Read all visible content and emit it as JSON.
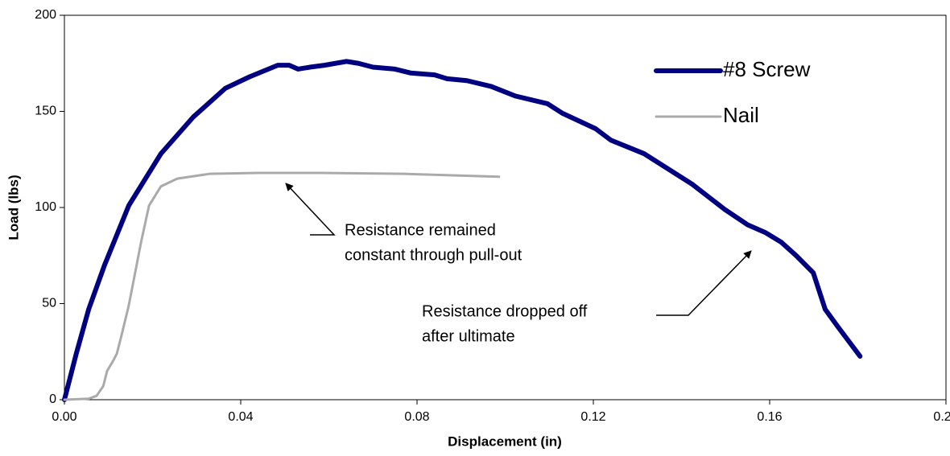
{
  "chart_data": {
    "type": "line",
    "x_label": "Displacement (in)",
    "y_label": "Load (lbs)",
    "xlim": [
      0,
      0.2
    ],
    "ylim": [
      0,
      200
    ],
    "xticks": [
      {
        "value": 0,
        "label": "0.00"
      },
      0.04,
      0.08,
      0.12,
      0.16,
      {
        "value": 0.2,
        "label": "0.20"
      }
    ],
    "yticks": [
      0,
      50,
      100,
      150,
      200
    ],
    "legend": "upper right",
    "series": [
      {
        "name": "#8 Screw",
        "color": "#000080",
        "x": [
          0,
          0.0027,
          0.0055,
          0.0091,
          0.0146,
          0.0219,
          0.0292,
          0.0365,
          0.042,
          0.0484,
          0.051,
          0.053,
          0.0557,
          0.059,
          0.064,
          0.0667,
          0.07,
          0.075,
          0.0785,
          0.084,
          0.0868,
          0.0913,
          0.0968,
          0.1023,
          0.1096,
          0.113,
          0.1205,
          0.124,
          0.1315,
          0.137,
          0.1425,
          0.1498,
          0.155,
          0.159,
          0.1626,
          0.166,
          0.1699,
          0.1726,
          0.1753,
          0.1805
        ],
        "values": [
          0,
          24,
          47,
          70,
          101,
          128,
          147,
          162,
          168,
          174,
          174,
          172,
          173,
          174,
          176,
          175,
          173,
          172,
          170,
          169,
          167,
          166,
          163,
          158,
          154,
          149,
          141,
          135,
          128,
          120,
          112,
          99,
          91,
          87,
          82,
          75,
          66,
          47,
          38.5,
          22.6
        ]
      },
      {
        "name": "Nail",
        "color": "#aaaaaa",
        "x": [
          0,
          0.0055,
          0.0073,
          0.0088,
          0.0097,
          0.011,
          0.0119,
          0.0128,
          0.0146,
          0.0174,
          0.0192,
          0.0219,
          0.0256,
          0.0329,
          0.044,
          0.058,
          0.077,
          0.0986
        ],
        "values": [
          0,
          0.5,
          2,
          7,
          15,
          20,
          24,
          32,
          49,
          82,
          101,
          111,
          115,
          117.5,
          118,
          118,
          117.5,
          116
        ]
      }
    ],
    "annotations": [
      {
        "lines": [
          "Resistance remained",
          "constant through pull-out"
        ]
      },
      {
        "lines": [
          "Resistance dropped off",
          "after ultimate"
        ]
      }
    ]
  }
}
